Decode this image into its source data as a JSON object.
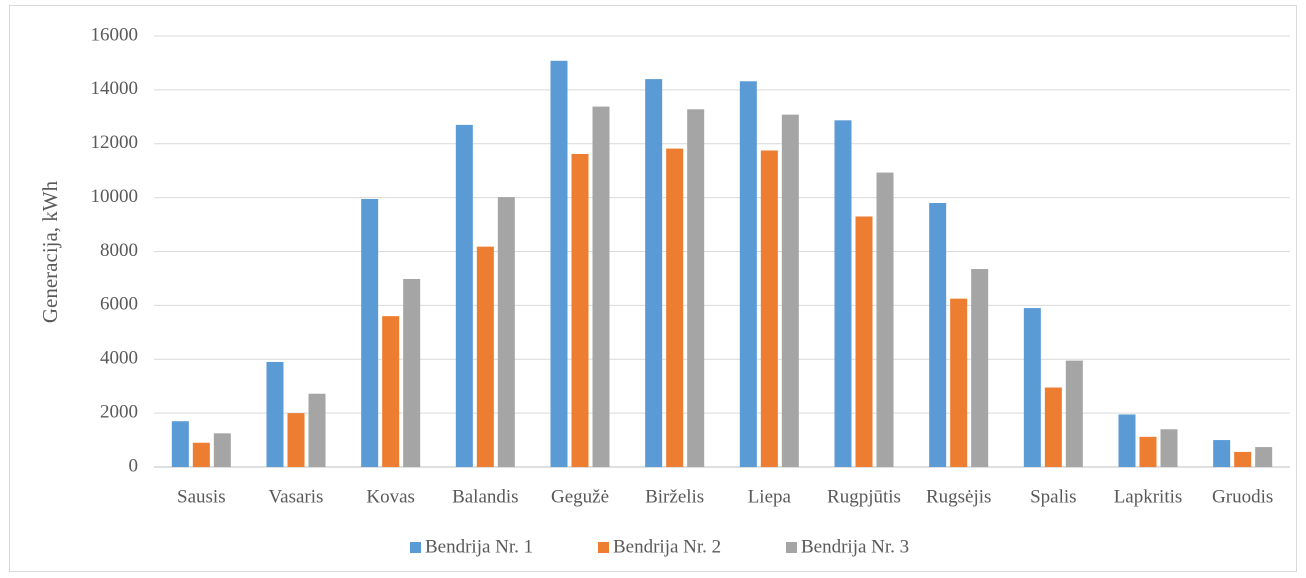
{
  "chart_data": {
    "type": "bar",
    "title": "",
    "xlabel": "",
    "ylabel": "Generacija, kWh",
    "ylim": [
      0,
      16000
    ],
    "yticks": [
      0,
      2000,
      4000,
      6000,
      8000,
      10000,
      12000,
      14000,
      16000
    ],
    "grid": true,
    "legend_position": "bottom",
    "categories": [
      "Sausis",
      "Vasaris",
      "Kovas",
      "Balandis",
      "Gegužė",
      "Birželis",
      "Liepa",
      "Rugpjūtis",
      "Rugsėjis",
      "Spalis",
      "Lapkritis",
      "Gruodis"
    ],
    "series": [
      {
        "name": "Bendrija Nr. 1",
        "color": "#5b9bd5",
        "values": [
          1700,
          3900,
          9950,
          12700,
          15080,
          14400,
          14320,
          12870,
          9800,
          5900,
          1950,
          1000
        ]
      },
      {
        "name": "Bendrija Nr. 2",
        "color": "#ed7d31",
        "values": [
          900,
          2000,
          5600,
          8180,
          11620,
          11820,
          11750,
          9300,
          6250,
          2950,
          1120,
          560
        ]
      },
      {
        "name": "Bendrija Nr. 3",
        "color": "#a5a5a5",
        "values": [
          1250,
          2720,
          6980,
          10020,
          13380,
          13280,
          13080,
          10930,
          7350,
          3950,
          1400,
          740
        ]
      }
    ]
  }
}
